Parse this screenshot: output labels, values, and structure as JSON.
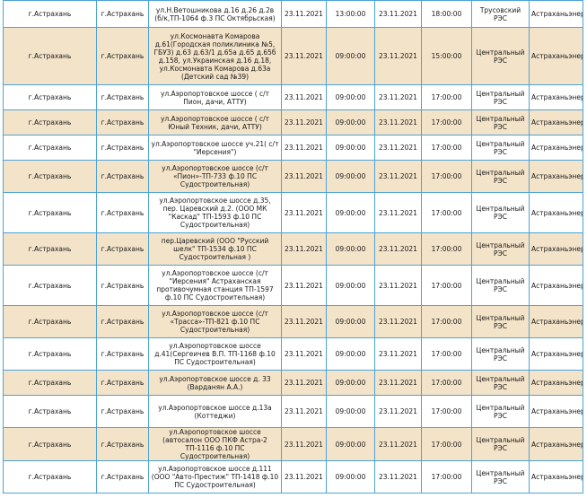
{
  "table": {
    "rows": [
      {
        "city": "г.Астрахань",
        "locality": "г.Астрахань",
        "address_lines": [
          "ул.Н.Ветошникова д.16 д.26 д.2в",
          "(б/к,ТП-1064 ф.3 ПС Октябрьская)"
        ],
        "start_date": "23.11.2021",
        "start_time": "13:00:00",
        "end_date": "23.11.2021",
        "end_time": "18:00:00",
        "res_lines": [
          "Трусовский",
          "РЭС"
        ],
        "org": "Астраханьэнерго"
      },
      {
        "city": "г.Астрахань",
        "locality": "г.Астрахань",
        "address_lines": [
          "ул.Космонавта Комарова",
          "д.61(Городская поликлиника №5,",
          "ГБУЗ) д.63 д.63/1 д.65а д.65 д.65б",
          "д.158, ул.Украинская д.16 д.18,",
          "ул.Космонавта Комарова д.63а",
          "(Детский сад №39)"
        ],
        "start_date": "23.11.2021",
        "start_time": "09:00:00",
        "end_date": "23.11.2021",
        "end_time": "15:00:00",
        "res_lines": [
          "Центральный",
          "РЭС"
        ],
        "org": "Астраханьэнерго"
      },
      {
        "city": "г.Астрахань",
        "locality": "г.Астрахань",
        "address_lines": [
          "ул.Аэропортовское шоссе ( с/т",
          "Пион, дачи, АТТУ)"
        ],
        "start_date": "23.11.2021",
        "start_time": "09:00:00",
        "end_date": "23.11.2021",
        "end_time": "17:00:00",
        "res_lines": [
          "Центральный",
          "РЭС"
        ],
        "org": "Астраханьэнерго"
      },
      {
        "city": "г.Астрахань",
        "locality": "г.Астрахань",
        "address_lines": [
          "ул.Аэропортовское шоссе ( с/т",
          "Юный Техник, дачи, АТТУ)"
        ],
        "start_date": "23.11.2021",
        "start_time": "09:00:00",
        "end_date": "23.11.2021",
        "end_time": "17:00:00",
        "res_lines": [
          "Центральный",
          "РЭС"
        ],
        "org": "Астраханьэнерго"
      },
      {
        "city": "г.Астрахань",
        "locality": "г.Астрахань",
        "address_lines": [
          "ул.Аэропортовское шоссе уч.21( с/т",
          "\"Иерсения\")"
        ],
        "start_date": "23.11.2021",
        "start_time": "09:00:00",
        "end_date": "23.11.2021",
        "end_time": "17:00:00",
        "res_lines": [
          "Центральный",
          "РЭС"
        ],
        "org": "Астраханьэнерго"
      },
      {
        "city": "г.Астрахань",
        "locality": "г.Астрахань",
        "address_lines": [
          "ул.Аэропортовское шоссе (с/т",
          "«Пион»-ТП-733 ф.10 ПС",
          "Судостроительная)"
        ],
        "start_date": "23.11.2021",
        "start_time": "09:00:00",
        "end_date": "23.11.2021",
        "end_time": "17:00:00",
        "res_lines": [
          "Центральный",
          "РЭС"
        ],
        "org": "Астраханьэнерго"
      },
      {
        "city": "г.Астрахань",
        "locality": "г.Астрахань",
        "address_lines": [
          "ул.Аэропортовское шоссе д.35,",
          "пер. Царевский д.2. (ООО МК",
          "\"Каскад\" ТП-1593 ф.10 ПС",
          "Судостроительная)"
        ],
        "start_date": "23.11.2021",
        "start_time": "09:00:00",
        "end_date": "23.11.2021",
        "end_time": "17:00:00",
        "res_lines": [
          "Центральный",
          "РЭС"
        ],
        "org": "Астраханьэнерго"
      },
      {
        "city": "г.Астрахань",
        "locality": "г.Астрахань",
        "address_lines": [
          "пер.Царевский (ООО \"Русский",
          "шелк\" ТП-1534 ф.10 ПС",
          "Судостроительная )"
        ],
        "start_date": "23.11.2021",
        "start_time": "09:00:00",
        "end_date": "23.11.2021",
        "end_time": "17:00:00",
        "res_lines": [
          "Центральный",
          "РЭС"
        ],
        "org": "Астраханьэнерго"
      },
      {
        "city": "г.Астрахань",
        "locality": "г.Астрахань",
        "address_lines": [
          "ул.Аэропортовское шоссе (с/т",
          "\"Иерсения\" Астраханская",
          "противочумная станция ТП-1597",
          "ф.10 ПС Судостроительная)"
        ],
        "start_date": "23.11.2021",
        "start_time": "09:00:00",
        "end_date": "23.11.2021",
        "end_time": "17:00:00",
        "res_lines": [
          "Центральный",
          "РЭС"
        ],
        "org": "Астраханьэнерго"
      },
      {
        "city": "г.Астрахань",
        "locality": "г.Астрахань",
        "address_lines": [
          "ул.Аэропортовское шоссе (с/т",
          "«Трасса»-ТП-821 ф.10 ПС",
          "Судостроительная)"
        ],
        "start_date": "23.11.2021",
        "start_time": "09:00:00",
        "end_date": "23.11.2021",
        "end_time": "17:00:00",
        "res_lines": [
          "Центральный",
          "РЭС"
        ],
        "org": "Астраханьэнерго"
      },
      {
        "city": "г.Астрахань",
        "locality": "г.Астрахань",
        "address_lines": [
          "ул.Аэропортовское шоссе",
          "д.41(Сергеичев В.П. ТП-1168 ф.10",
          "ПС Судостроительная)"
        ],
        "start_date": "23.11.2021",
        "start_time": "09:00:00",
        "end_date": "23.11.2021",
        "end_time": "17:00:00",
        "res_lines": [
          "Центральный",
          "РЭС"
        ],
        "org": "Астраханьэнерго"
      },
      {
        "city": "г.Астрахань",
        "locality": "г.Астрахань",
        "address_lines": [
          "ул.Аэропортовское шоссе д. 33",
          "(Варданян А.А.)"
        ],
        "start_date": "23.11.2021",
        "start_time": "09:00:00",
        "end_date": "23.11.2021",
        "end_time": "17:00:00",
        "res_lines": [
          "Центральный",
          "РЭС"
        ],
        "org": "Астраханьэнерго"
      },
      {
        "city": "г.Астрахань",
        "locality": "г.Астрахань",
        "address_lines": [
          "ул.Аэропортовское шоссе д.13а",
          "(Коттеджи)"
        ],
        "start_date": "23.11.2021",
        "start_time": "09:00:00",
        "end_date": "23.11.2021",
        "end_time": "17:00:00",
        "res_lines": [
          "Центральный",
          "РЭС"
        ],
        "org": "Астраханьэнерго"
      },
      {
        "city": "г.Астрахань",
        "locality": "г.Астрахань",
        "address_lines": [
          "ул.Аэропортовское шоссе",
          "(автосалон ООО ПКФ Астра-2",
          "ТП-1116 ф.10 ПС",
          "Судостроительная)"
        ],
        "start_date": "23.11.2021",
        "start_time": "09:00:00",
        "end_date": "23.11.2021",
        "end_time": "17:00:00",
        "res_lines": [
          "Центральный",
          "РЭС"
        ],
        "org": "Астраханьэнерго"
      },
      {
        "city": "г.Астрахань",
        "locality": "г.Астрахань",
        "address_lines": [
          "ул.Аэропортовское шоссе д.111",
          "(ООО \"Авто-Престиж\" ТП-1418 ф.10",
          "ПС Судостроительная)"
        ],
        "start_date": "23.11.2021",
        "start_time": "09:00:00",
        "end_date": "23.11.2021",
        "end_time": "17:00:00",
        "res_lines": [
          "Центральный",
          "РЭС"
        ],
        "org": "Астраханьэнерго"
      }
    ]
  }
}
